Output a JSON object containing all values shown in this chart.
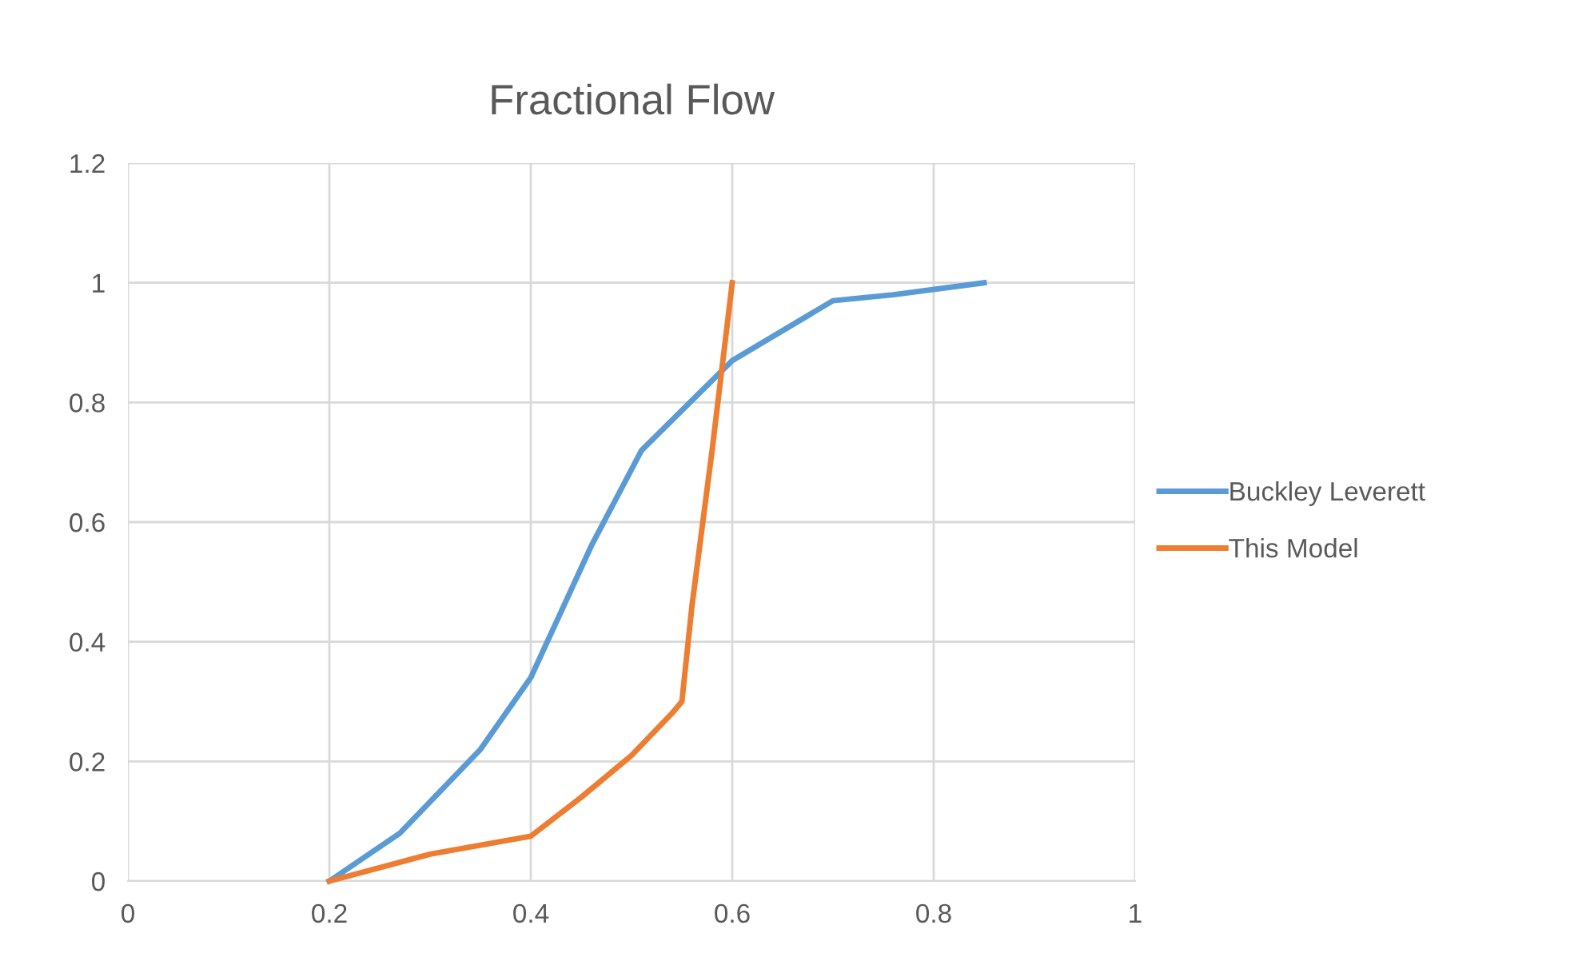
{
  "chart_data": {
    "type": "line",
    "title": "Fractional Flow",
    "xlim": [
      0,
      1
    ],
    "xticks": [
      0,
      0.2,
      0.4,
      0.6,
      0.8,
      1
    ],
    "ylim": [
      0,
      1.2
    ],
    "yticks": [
      0,
      0.2,
      0.4,
      0.6,
      0.8,
      1,
      1.2
    ],
    "grid": true,
    "legend": "right",
    "marker": "none",
    "line_style": "solid",
    "series": [
      {
        "name": "Buckley Leverett",
        "color": "#5b9bd5",
        "x": [
          0.2,
          0.27,
          0.35,
          0.4,
          0.46,
          0.51,
          0.6,
          0.7,
          0.76,
          0.85
        ],
        "values": [
          0,
          0.08,
          0.22,
          0.34,
          0.56,
          0.72,
          0.87,
          0.97,
          0.98,
          1.0
        ]
      },
      {
        "name": "This Model",
        "color": "#ed7d31",
        "x": [
          0.2,
          0.3,
          0.4,
          0.45,
          0.5,
          0.54,
          0.55,
          0.56,
          0.58,
          0.6
        ],
        "values": [
          0,
          0.045,
          0.075,
          0.14,
          0.21,
          0.28,
          0.3,
          0.46,
          0.72,
          1.0
        ]
      }
    ]
  }
}
